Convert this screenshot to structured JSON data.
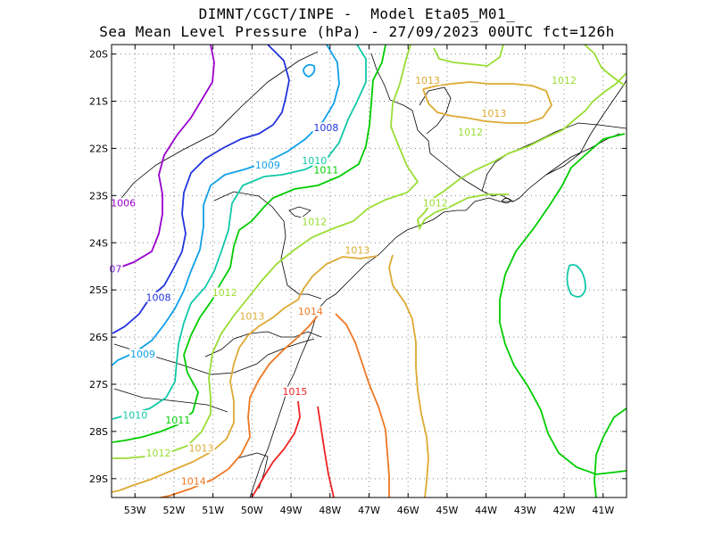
{
  "title": {
    "line1": "DIMNT/CGCT/INPE -  Model Eta05_M01_",
    "line2": "Sea Mean Level Pressure (hPa) - 27/09/2023 00UTC fct=126h"
  },
  "map": {
    "lon_range": [
      -53.6,
      -40.4
    ],
    "lat_range": [
      -29.4,
      -19.8
    ],
    "x_ticks": [
      {
        "value": -53,
        "label": "53W"
      },
      {
        "value": -52,
        "label": "52W"
      },
      {
        "value": -51,
        "label": "51W"
      },
      {
        "value": -50,
        "label": "50W"
      },
      {
        "value": -49,
        "label": "49W"
      },
      {
        "value": -48,
        "label": "48W"
      },
      {
        "value": -47,
        "label": "47W"
      },
      {
        "value": -46,
        "label": "46W"
      },
      {
        "value": -45,
        "label": "45W"
      },
      {
        "value": -44,
        "label": "44W"
      },
      {
        "value": -43,
        "label": "43W"
      },
      {
        "value": -42,
        "label": "42W"
      },
      {
        "value": -41,
        "label": "41W"
      }
    ],
    "y_ticks": [
      {
        "value": -20,
        "label": "20S"
      },
      {
        "value": -21,
        "label": "21S"
      },
      {
        "value": -22,
        "label": "22S"
      },
      {
        "value": -23,
        "label": "23S"
      },
      {
        "value": -24,
        "label": "24S"
      },
      {
        "value": -25,
        "label": "25S"
      },
      {
        "value": -26,
        "label": "26S"
      },
      {
        "value": -27,
        "label": "27S"
      },
      {
        "value": -28,
        "label": "28S"
      },
      {
        "value": -29,
        "label": "29S"
      }
    ],
    "grid": true,
    "contour_colors": {
      "1006": "#9900cc",
      "1007": "#7a1fd6",
      "1008": "#2233dd",
      "1009": "#11a0e8",
      "1010": "#11c8a8",
      "1011": "#00cc00",
      "1012": "#99dd33",
      "1013": "#ddaa33",
      "1014": "#ee7722",
      "1015": "#ee2222"
    },
    "contour_labels": [
      {
        "text": "1006",
        "lon": -53.3,
        "lat": -23.2,
        "level": "1006"
      },
      {
        "text": "07",
        "lon": -53.5,
        "lat": -24.6,
        "level": "1007"
      },
      {
        "text": "1008",
        "lon": -48.1,
        "lat": -21.6,
        "level": "1008"
      },
      {
        "text": "1008",
        "lon": -52.4,
        "lat": -25.2,
        "level": "1008"
      },
      {
        "text": "1009",
        "lon": -49.6,
        "lat": -22.4,
        "level": "1009"
      },
      {
        "text": "1009",
        "lon": -52.8,
        "lat": -26.4,
        "level": "1009"
      },
      {
        "text": "1010",
        "lon": -48.4,
        "lat": -22.3,
        "level": "1010"
      },
      {
        "text": "1010",
        "lon": -53.0,
        "lat": -27.7,
        "level": "1010"
      },
      {
        "text": "1011",
        "lon": -48.1,
        "lat": -22.5,
        "level": "1011"
      },
      {
        "text": "1011",
        "lon": -51.9,
        "lat": -27.8,
        "level": "1011"
      },
      {
        "text": "1012",
        "lon": -48.4,
        "lat": -23.6,
        "level": "1012"
      },
      {
        "text": "1012",
        "lon": -50.7,
        "lat": -25.1,
        "level": "1012"
      },
      {
        "text": "1012",
        "lon": -52.4,
        "lat": -28.5,
        "level": "1012"
      },
      {
        "text": "1012",
        "lon": -45.3,
        "lat": -23.2,
        "level": "1012"
      },
      {
        "text": "1012",
        "lon": -44.4,
        "lat": -21.7,
        "level": "1012"
      },
      {
        "text": "1012",
        "lon": -42.0,
        "lat": -20.6,
        "level": "1012"
      },
      {
        "text": "1013",
        "lon": -50.0,
        "lat": -25.6,
        "level": "1013"
      },
      {
        "text": "1013",
        "lon": -47.3,
        "lat": -24.2,
        "level": "1013"
      },
      {
        "text": "1013",
        "lon": -51.3,
        "lat": -28.4,
        "level": "1013"
      },
      {
        "text": "1013",
        "lon": -45.5,
        "lat": -20.6,
        "level": "1013"
      },
      {
        "text": "1013",
        "lon": -43.8,
        "lat": -21.3,
        "level": "1013"
      },
      {
        "text": "1014",
        "lon": -48.5,
        "lat": -25.5,
        "level": "1014"
      },
      {
        "text": "1014",
        "lon": -51.5,
        "lat": -29.1,
        "level": "1014"
      },
      {
        "text": "1015",
        "lon": -48.9,
        "lat": -27.2,
        "level": "1015"
      }
    ]
  }
}
